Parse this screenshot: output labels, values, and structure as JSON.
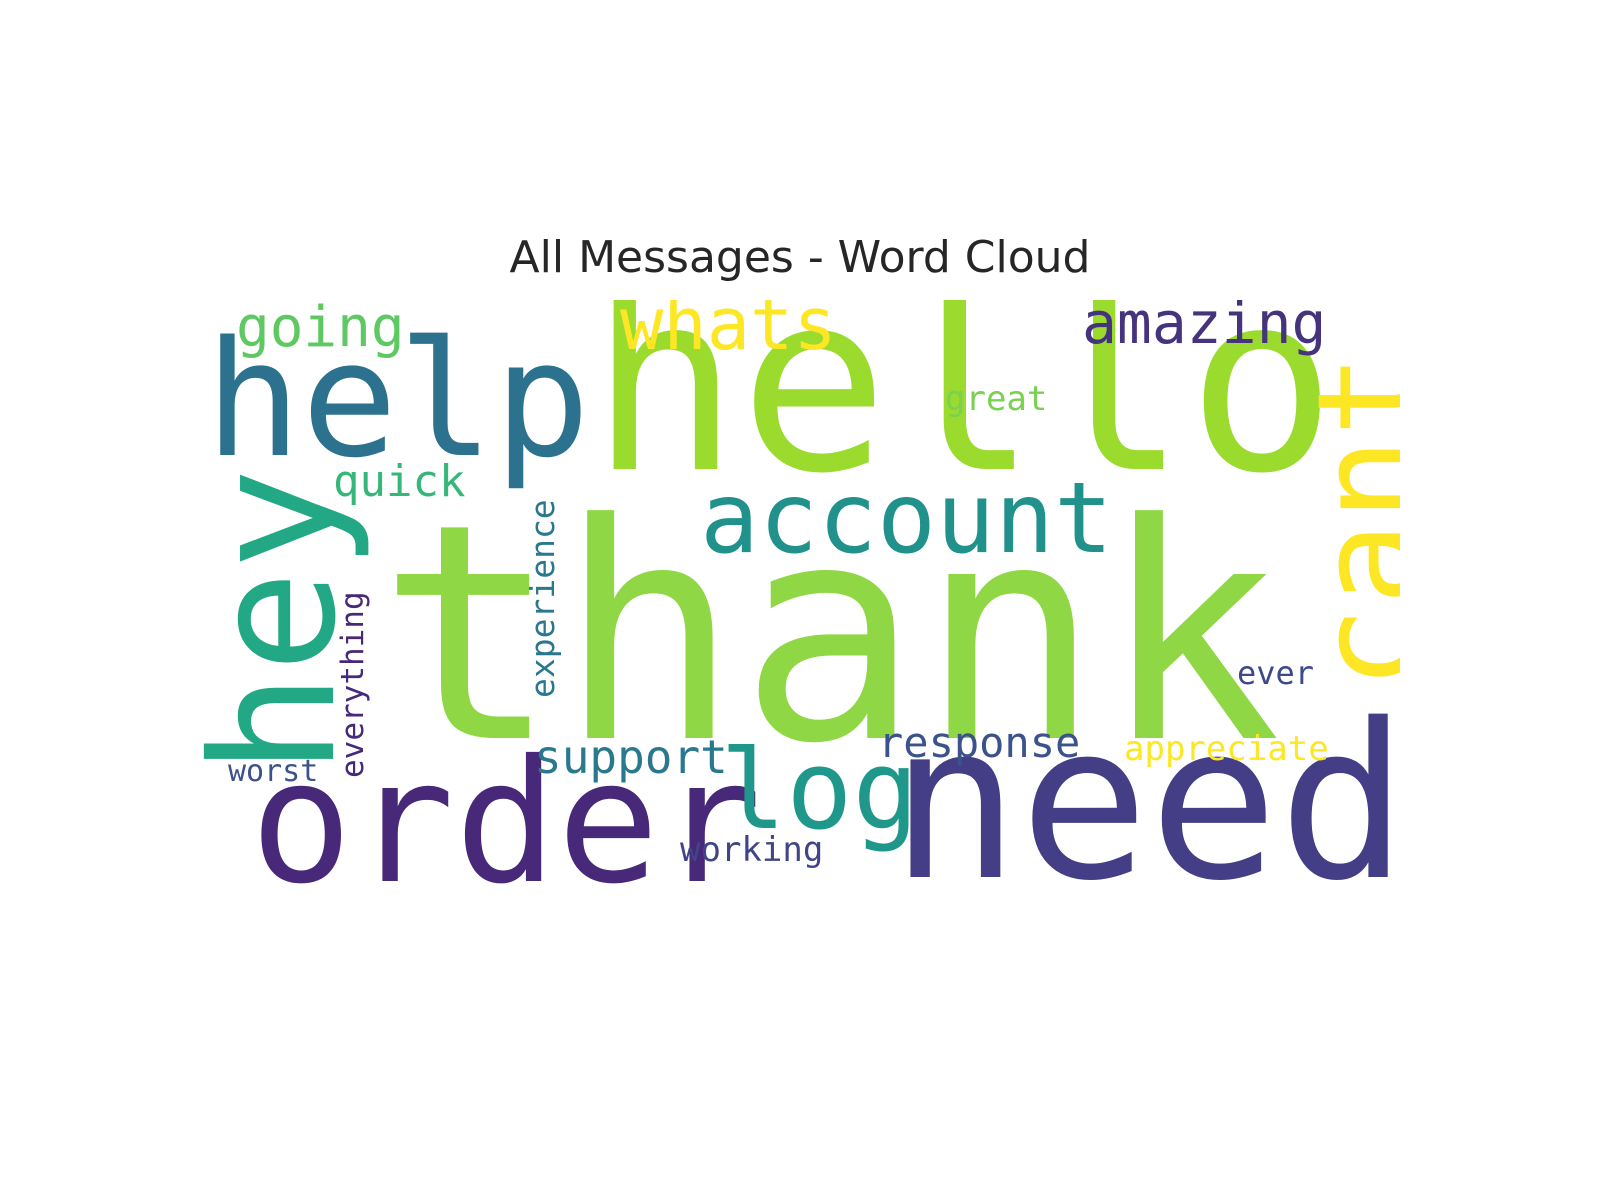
{
  "title": "All Messages - Word Cloud",
  "words": {
    "thank": "thank",
    "hello": "hello",
    "need": "need",
    "order": "order",
    "help": "help",
    "hey": "hey",
    "cant": "cant",
    "account": "account",
    "log": "log",
    "whats": "whats",
    "amazing": "amazing",
    "going": "going",
    "support": "support",
    "response": "response",
    "appreciate": "appreciate",
    "quick": "quick",
    "great": "great",
    "ever": "ever",
    "worst": "worst",
    "working": "working",
    "experience": "experience",
    "everything": "everything"
  },
  "colors": {
    "background": "#ffffff",
    "title": "#262626",
    "palette": "viridis"
  }
}
